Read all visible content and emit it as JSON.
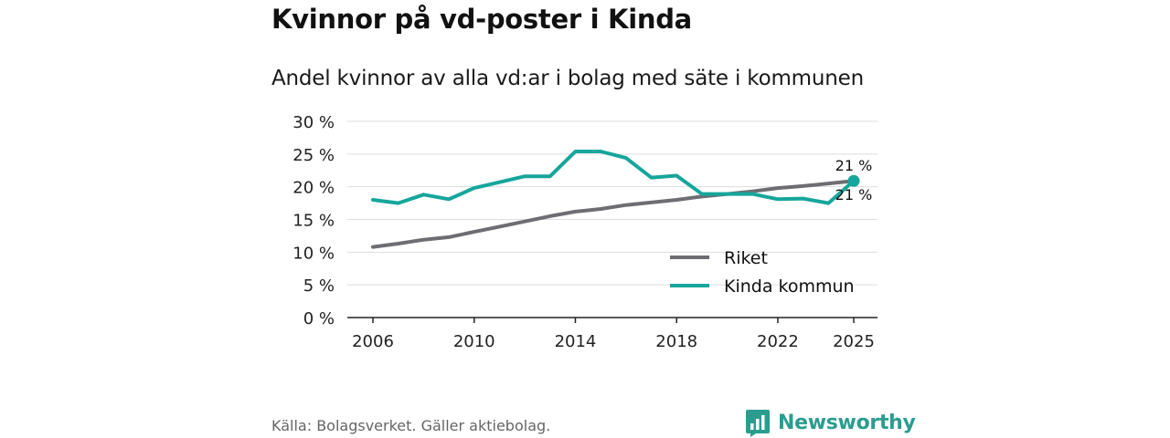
{
  "title": "Kvinnor på vd-poster i Kinda",
  "subtitle": "Andel kvinnor av alla vd:ar i bolag med säte i kommunen",
  "source": "Källa: Bolagsverket. Gäller aktiebolag.",
  "brand": {
    "name": "Newsworthy",
    "icon": "bar-chart-logo-icon"
  },
  "colors": {
    "riket": "#6e6d72",
    "kinda": "#16a69b",
    "grid": "#dddddd",
    "axis": "#222222"
  },
  "chart_data": {
    "type": "line",
    "x": [
      2006,
      2007,
      2008,
      2009,
      2010,
      2011,
      2012,
      2013,
      2014,
      2015,
      2016,
      2017,
      2018,
      2019,
      2020,
      2021,
      2022,
      2023,
      2024,
      2025
    ],
    "series": [
      {
        "name": "Riket",
        "color": "#6e6d72",
        "values": [
          10.8,
          11.3,
          11.9,
          12.3,
          13.1,
          13.9,
          14.7,
          15.5,
          16.2,
          16.6,
          17.2,
          17.6,
          18.0,
          18.5,
          18.9,
          19.3,
          19.8,
          20.1,
          20.5,
          20.9
        ]
      },
      {
        "name": "Kinda kommun",
        "color": "#16a69b",
        "values": [
          18.0,
          17.5,
          18.8,
          18.1,
          19.8,
          20.7,
          21.6,
          21.6,
          25.4,
          25.4,
          24.4,
          21.4,
          21.7,
          18.9,
          18.9,
          18.9,
          18.1,
          18.2,
          17.5,
          20.9
        ]
      }
    ],
    "end_labels": [
      "21 %",
      "21 %"
    ],
    "yticks": [
      0,
      5,
      10,
      15,
      20,
      25,
      30
    ],
    "ytick_labels": [
      "0 %",
      "5 %",
      "10 %",
      "15 %",
      "20 %",
      "25 %",
      "30 %"
    ],
    "xticks": [
      2006,
      2010,
      2014,
      2018,
      2022,
      2025
    ],
    "xtick_labels": [
      "2006",
      "2010",
      "2014",
      "2018",
      "2022",
      "2025"
    ],
    "ylim": [
      0,
      30
    ],
    "xlim": [
      2006,
      2025
    ],
    "legend": [
      "Riket",
      "Kinda kommun"
    ],
    "legend_position": "lower-right",
    "grid": true
  }
}
